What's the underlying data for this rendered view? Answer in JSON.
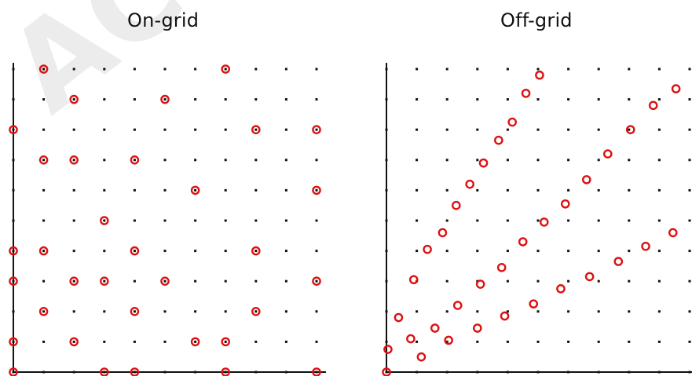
{
  "panels": {
    "left": {
      "title": "On-grid",
      "points": [
        [
          1,
          10
        ],
        [
          7,
          10
        ],
        [
          2,
          9
        ],
        [
          5,
          9
        ],
        [
          0,
          8
        ],
        [
          8,
          8
        ],
        [
          10,
          8
        ],
        [
          1,
          7
        ],
        [
          2,
          7
        ],
        [
          4,
          7
        ],
        [
          6,
          6
        ],
        [
          10,
          6
        ],
        [
          3,
          5
        ],
        [
          0,
          4
        ],
        [
          1,
          4
        ],
        [
          4,
          4
        ],
        [
          8,
          4
        ],
        [
          0,
          3
        ],
        [
          2,
          3
        ],
        [
          3,
          3
        ],
        [
          5,
          3
        ],
        [
          10,
          3
        ],
        [
          1,
          2
        ],
        [
          4,
          2
        ],
        [
          8,
          2
        ],
        [
          0,
          1
        ],
        [
          2,
          1
        ],
        [
          6,
          1
        ],
        [
          7,
          1
        ],
        [
          0,
          0
        ],
        [
          3,
          0
        ],
        [
          4,
          0
        ],
        [
          7,
          0
        ],
        [
          10,
          0
        ]
      ]
    },
    "right": {
      "title": "Off-grid",
      "points": [
        [
          5.05,
          9.8
        ],
        [
          4.6,
          9.2
        ],
        [
          4.15,
          8.25
        ],
        [
          3.7,
          7.65
        ],
        [
          3.2,
          6.9
        ],
        [
          2.75,
          6.2
        ],
        [
          2.3,
          5.5
        ],
        [
          1.85,
          4.6
        ],
        [
          1.35,
          4.05
        ],
        [
          0.9,
          3.05
        ],
        [
          0.4,
          1.8
        ],
        [
          0.05,
          0.75
        ],
        [
          9.55,
          9.35
        ],
        [
          8.8,
          8.8
        ],
        [
          8.05,
          8.0
        ],
        [
          7.3,
          7.2
        ],
        [
          6.6,
          6.35
        ],
        [
          5.9,
          5.55
        ],
        [
          5.2,
          4.95
        ],
        [
          4.5,
          4.3
        ],
        [
          3.8,
          3.45
        ],
        [
          3.1,
          2.9
        ],
        [
          2.35,
          2.2
        ],
        [
          1.6,
          1.45
        ],
        [
          0.8,
          1.1
        ],
        [
          10.4,
          5.0
        ],
        [
          9.45,
          4.6
        ],
        [
          8.55,
          4.15
        ],
        [
          7.65,
          3.65
        ],
        [
          6.7,
          3.15
        ],
        [
          5.75,
          2.75
        ],
        [
          4.85,
          2.25
        ],
        [
          3.9,
          1.85
        ],
        [
          3.0,
          1.45
        ],
        [
          2.05,
          1.05
        ],
        [
          1.15,
          0.5
        ],
        [
          0.0,
          0.0
        ]
      ]
    }
  },
  "watermark": "ACCE",
  "colors": {
    "grid_dot": "#111111",
    "axis": "#111111",
    "marker": "#dd1111"
  }
}
